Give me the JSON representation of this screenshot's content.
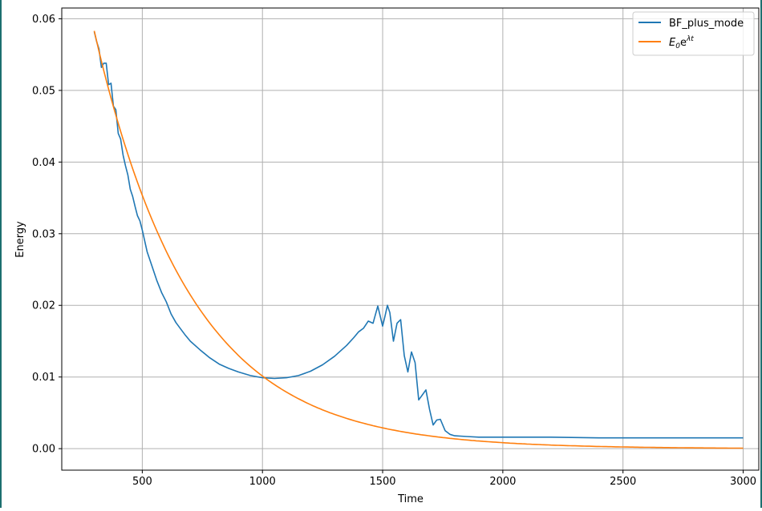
{
  "chart_data": {
    "type": "line",
    "title": "",
    "xlabel": "Time",
    "ylabel": "Energy",
    "xlim": [
      165,
      3065
    ],
    "ylim": [
      -0.003,
      0.0615
    ],
    "xticks": [
      500,
      1000,
      1500,
      2000,
      2500,
      3000
    ],
    "xtick_labels": [
      "500",
      "1000",
      "1500",
      "2000",
      "2500",
      "3000"
    ],
    "yticks": [
      0.0,
      0.01,
      0.02,
      0.03,
      0.04,
      0.05,
      0.06
    ],
    "ytick_labels": [
      "0.00",
      "0.01",
      "0.02",
      "0.03",
      "0.04",
      "0.05",
      "0.06"
    ],
    "grid": true,
    "legend_position": "top-right",
    "series": [
      {
        "name": "BF_plus_mode",
        "color": "#1f77b4",
        "x": [
          300,
          310,
          320,
          330,
          340,
          350,
          360,
          370,
          380,
          390,
          400,
          410,
          420,
          430,
          440,
          450,
          460,
          470,
          480,
          490,
          500,
          520,
          540,
          560,
          580,
          600,
          620,
          640,
          660,
          680,
          700,
          740,
          780,
          820,
          860,
          900,
          950,
          1000,
          1050,
          1100,
          1150,
          1200,
          1250,
          1300,
          1350,
          1380,
          1400,
          1420,
          1440,
          1460,
          1480,
          1500,
          1510,
          1520,
          1530,
          1545,
          1560,
          1575,
          1590,
          1605,
          1620,
          1635,
          1650,
          1665,
          1680,
          1695,
          1710,
          1725,
          1740,
          1760,
          1780,
          1800,
          1850,
          1900,
          2000,
          2200,
          2400,
          2600,
          2800,
          3000
        ],
        "y": [
          0.0582,
          0.0568,
          0.0558,
          0.0532,
          0.0538,
          0.0538,
          0.0508,
          0.051,
          0.0478,
          0.0473,
          0.044,
          0.0432,
          0.041,
          0.0395,
          0.0382,
          0.0362,
          0.0352,
          0.0338,
          0.0325,
          0.0318,
          0.0305,
          0.0275,
          0.0255,
          0.0235,
          0.0218,
          0.0205,
          0.0188,
          0.0176,
          0.0167,
          0.0158,
          0.015,
          0.0138,
          0.0127,
          0.0118,
          0.0112,
          0.0107,
          0.0102,
          0.0099,
          0.0098,
          0.0099,
          0.0102,
          0.0108,
          0.0117,
          0.0129,
          0.0144,
          0.0155,
          0.0163,
          0.0168,
          0.0178,
          0.0175,
          0.0199,
          0.0171,
          0.0185,
          0.02,
          0.019,
          0.015,
          0.0175,
          0.018,
          0.013,
          0.0107,
          0.0135,
          0.012,
          0.0068,
          0.0075,
          0.0082,
          0.0055,
          0.0033,
          0.004,
          0.0041,
          0.0025,
          0.002,
          0.0018,
          0.0017,
          0.0016,
          0.0016,
          0.0016,
          0.0015,
          0.0015,
          0.0015,
          0.0015
        ]
      },
      {
        "name": "E0e^(λt)",
        "legend_label": {
          "base": "E",
          "sub": "0",
          "mid": "e",
          "sup": "λt"
        },
        "color": "#ff7f0e",
        "model": {
          "E0": 0.0583,
          "lambda": -0.0025,
          "t0": 300,
          "t_start": 300,
          "t_end": 3000
        }
      }
    ]
  }
}
